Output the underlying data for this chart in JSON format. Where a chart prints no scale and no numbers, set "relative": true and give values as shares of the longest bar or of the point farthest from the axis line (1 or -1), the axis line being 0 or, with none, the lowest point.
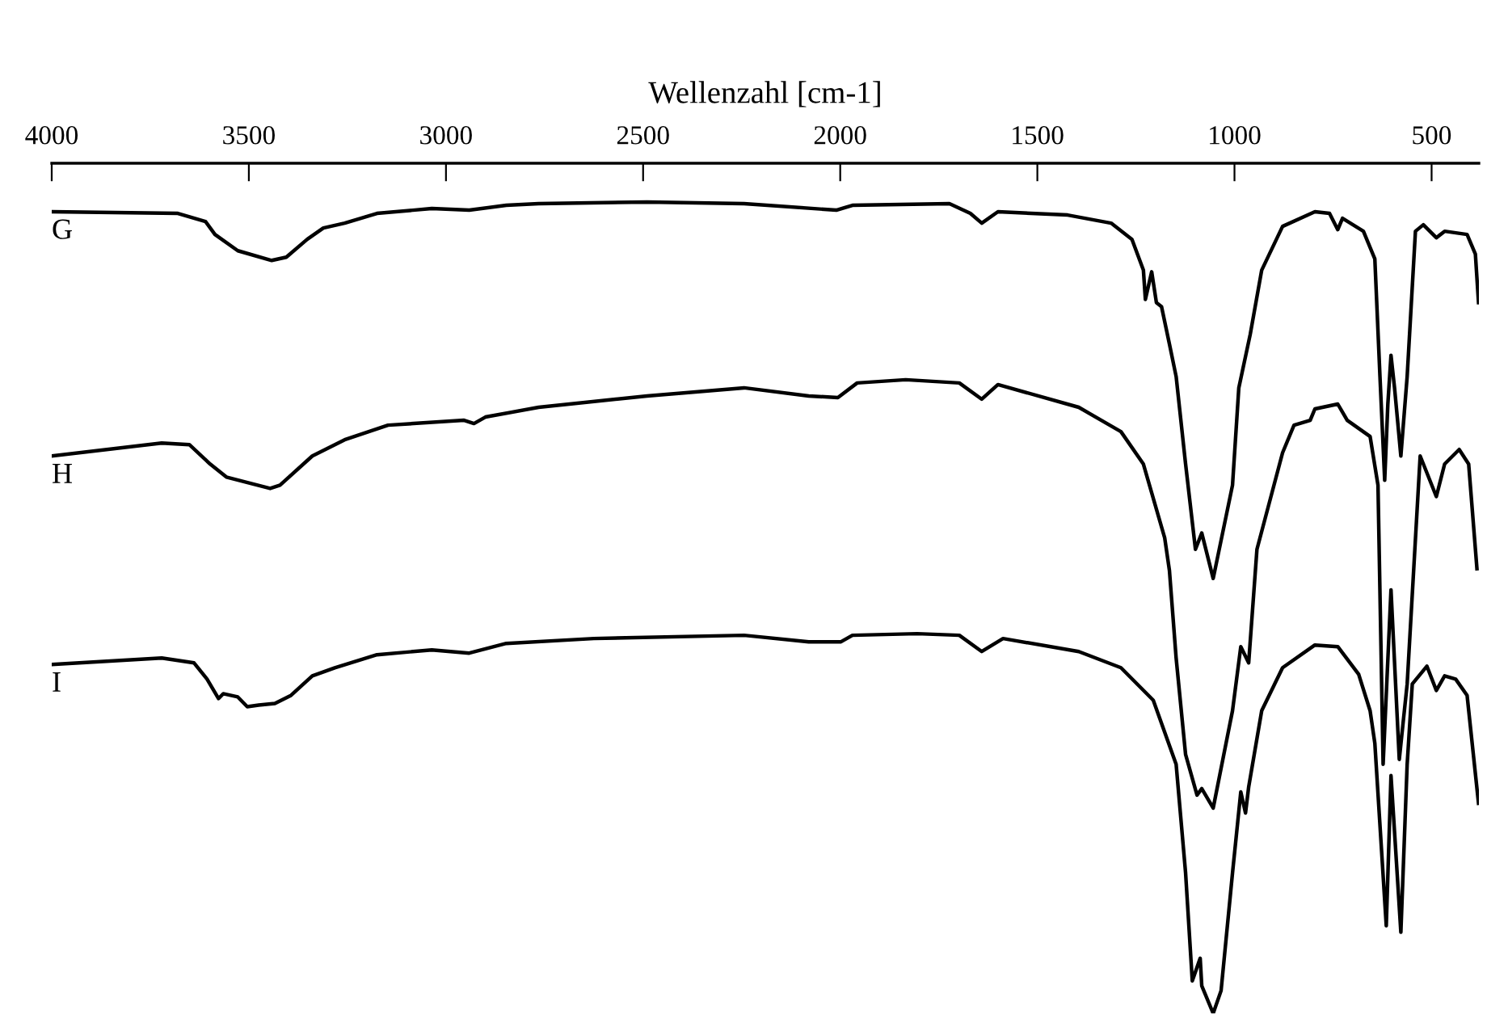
{
  "chart_data": {
    "type": "line",
    "xlabel": "Wellenzahl [cm-1]",
    "relative": true,
    "xlim": [
      4000,
      380
    ],
    "xticks": [
      4000,
      3500,
      3000,
      2500,
      2000,
      1500,
      1000,
      500
    ],
    "grid": false,
    "legend": false,
    "marker": "none",
    "line_style": "solid",
    "series": [
      {
        "name": "G",
        "color": "#000000",
        "x": [
          4000,
          3680,
          3610,
          3586,
          3528,
          3442,
          3405,
          3352,
          3311,
          3257,
          3175,
          3036,
          2941,
          2847,
          2765,
          2490,
          2244,
          2010,
          1969,
          1723,
          1670,
          1641,
          1600,
          1423,
          1313,
          1260,
          1231,
          1226,
          1210,
          1198,
          1185,
          1165,
          1148,
          1124,
          1099,
          1083,
          1054,
          1005,
          989,
          960,
          931,
          878,
          796,
          759,
          738,
          726,
          673,
          644,
          631,
          619,
          611,
          603,
          594,
          578,
          562,
          541,
          521,
          488,
          467,
          410,
          389,
          381
        ],
        "values": [
          0.988,
          0.986,
          0.976,
          0.96,
          0.94,
          0.928,
          0.932,
          0.954,
          0.968,
          0.974,
          0.986,
          0.992,
          0.99,
          0.996,
          0.998,
          1.0,
          0.998,
          0.99,
          0.996,
          0.998,
          0.986,
          0.974,
          0.988,
          0.984,
          0.974,
          0.954,
          0.916,
          0.88,
          0.914,
          0.876,
          0.871,
          0.825,
          0.785,
          0.677,
          0.572,
          0.592,
          0.536,
          0.651,
          0.771,
          0.837,
          0.916,
          0.97,
          0.988,
          0.986,
          0.966,
          0.98,
          0.964,
          0.93,
          0.785,
          0.657,
          0.751,
          0.811,
          0.771,
          0.687,
          0.785,
          0.964,
          0.972,
          0.956,
          0.964,
          0.96,
          0.936,
          0.876
        ]
      },
      {
        "name": "H",
        "color": "#000000",
        "x": [
          4000,
          3721,
          3651,
          3598,
          3557,
          3446,
          3421,
          3339,
          3257,
          3147,
          2954,
          2929,
          2900,
          2765,
          2490,
          2244,
          2080,
          2006,
          1957,
          1834,
          1698,
          1641,
          1600,
          1395,
          1288,
          1231,
          1177,
          1165,
          1148,
          1124,
          1095,
          1083,
          1054,
          1005,
          984,
          964,
          943,
          878,
          849,
          808,
          796,
          738,
          714,
          656,
          636,
          623,
          603,
          582,
          562,
          529,
          488,
          467,
          430,
          406,
          385
        ],
        "values": [
          0.687,
          0.703,
          0.701,
          0.677,
          0.661,
          0.647,
          0.651,
          0.687,
          0.707,
          0.725,
          0.731,
          0.727,
          0.735,
          0.747,
          0.761,
          0.771,
          0.761,
          0.759,
          0.777,
          0.781,
          0.777,
          0.757,
          0.775,
          0.747,
          0.717,
          0.677,
          0.586,
          0.546,
          0.438,
          0.319,
          0.269,
          0.277,
          0.253,
          0.373,
          0.452,
          0.432,
          0.572,
          0.691,
          0.725,
          0.731,
          0.745,
          0.751,
          0.731,
          0.711,
          0.651,
          0.307,
          0.522,
          0.313,
          0.406,
          0.687,
          0.637,
          0.677,
          0.695,
          0.677,
          0.548
        ]
      },
      {
        "name": "I",
        "color": "#000000",
        "x": [
          4000,
          3721,
          3639,
          3606,
          3577,
          3565,
          3528,
          3504,
          3475,
          3434,
          3393,
          3339,
          3282,
          3175,
          3036,
          2941,
          2847,
          2625,
          2244,
          2080,
          1998,
          1969,
          1805,
          1698,
          1641,
          1587,
          1395,
          1288,
          1206,
          1148,
          1124,
          1107,
          1087,
          1083,
          1054,
          1034,
          1005,
          984,
          972,
          964,
          931,
          878,
          796,
          738,
          685,
          656,
          644,
          615,
          603,
          578,
          562,
          549,
          512,
          488,
          467,
          439,
          410,
          381
        ],
        "values": [
          0.43,
          0.438,
          0.432,
          0.412,
          0.388,
          0.394,
          0.39,
          0.378,
          0.38,
          0.382,
          0.392,
          0.416,
          0.426,
          0.442,
          0.448,
          0.444,
          0.456,
          0.462,
          0.466,
          0.458,
          0.458,
          0.466,
          0.468,
          0.466,
          0.446,
          0.462,
          0.446,
          0.426,
          0.386,
          0.307,
          0.173,
          0.04,
          0.068,
          0.034,
          0.0,
          0.028,
          0.173,
          0.273,
          0.247,
          0.279,
          0.373,
          0.426,
          0.454,
          0.452,
          0.418,
          0.373,
          0.333,
          0.108,
          0.293,
          0.1,
          0.307,
          0.406,
          0.428,
          0.398,
          0.416,
          0.412,
          0.392,
          0.259
        ]
      }
    ]
  }
}
